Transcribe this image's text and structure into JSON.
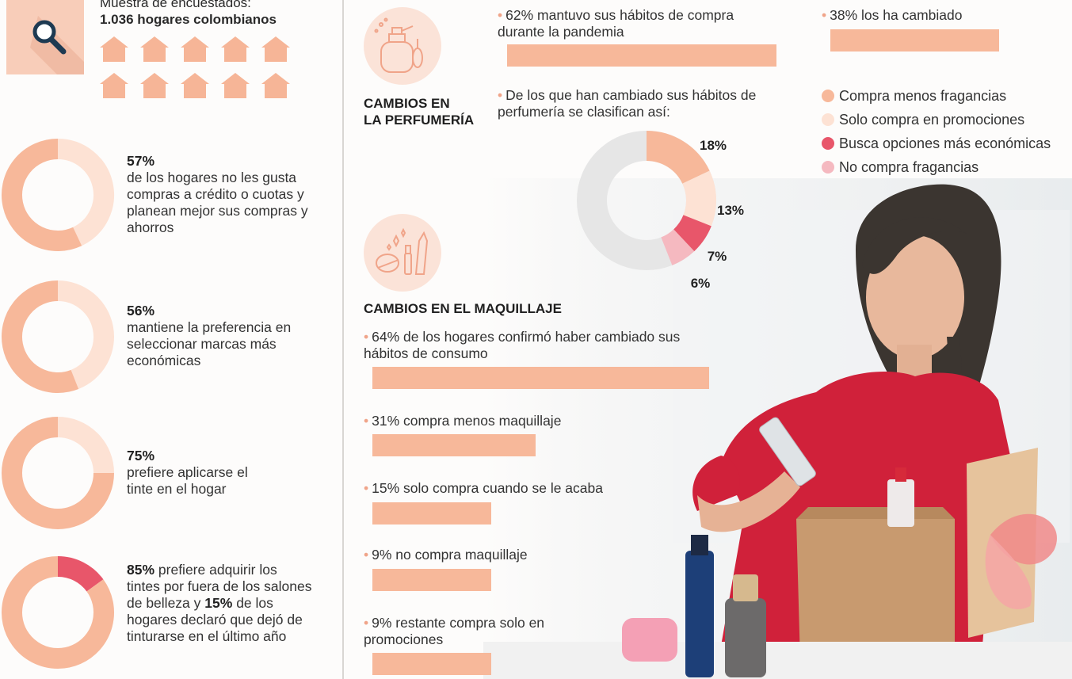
{
  "sample": {
    "line1": "Muestra de encuestados:",
    "line2": "1.036 hogares colombianos"
  },
  "left_stats": [
    {
      "pct": "57%",
      "text": "de los hogares no les gusta compras a crédito o cuotas y planean mejor sus compras y ahorros"
    },
    {
      "pct": "56%",
      "text": "mantiene la preferencia en seleccionar marcas más económicas"
    },
    {
      "pct": "75%",
      "text": "prefiere aplicarse el tinte en el hogar"
    },
    {
      "pct": "85%",
      "text_a": "prefiere adquirir los tintes por fuera de los salones de belleza y",
      "pct2": "15%",
      "text_b": "de los hogares declaró que dejó de tinturarse en el último año"
    }
  ],
  "perfumeria": {
    "title_1": "CAMBIOS EN",
    "title_2": "LA PERFUMERÍA",
    "kept": "62% mantuvo sus hábitos de compra durante la pandemia",
    "changed": "38% los ha cambiado",
    "donut_intro": "De los que han cambiado sus hábitos de perfumería se clasifican así:"
  },
  "maquillaje": {
    "title": "CAMBIOS EN EL MAQUILLAJE",
    "items": [
      {
        "text": "64% de los hogares confirmó haber cambiado sus hábitos de consumo",
        "value": 64
      },
      {
        "text": "31% compra menos maquillaje",
        "value": 31
      },
      {
        "text": "15% solo compra cuando se le acaba",
        "value": 15
      },
      {
        "text": "9% no compra maquillaje",
        "value": 9
      },
      {
        "text": "9% restante compra solo en promociones",
        "value": 9
      }
    ]
  },
  "colors": {
    "peach": "#f7b89a",
    "light_peach": "#fde2d4",
    "red": "#e8566a",
    "pink": "#f5b9c0",
    "grey": "#e6e6e6"
  },
  "chart_data": [
    {
      "type": "pie",
      "title": "",
      "categories": [
        "Compra menos fragancias",
        "Solo compra en promociones",
        "Busca opciones más económicas",
        "No compra fragancias"
      ],
      "values": [
        18,
        13,
        7,
        6
      ],
      "labels": [
        "18%",
        "13%",
        "7%",
        "6%"
      ],
      "colors": [
        "#f7b89a",
        "#fde2d4",
        "#e8566a",
        "#f5b9c0"
      ],
      "legend": "right"
    },
    {
      "type": "pie",
      "values": [
        57,
        43
      ],
      "label": "57%"
    },
    {
      "type": "pie",
      "values": [
        56,
        44
      ],
      "label": "56%"
    },
    {
      "type": "pie",
      "values": [
        75,
        25
      ],
      "label": "75%"
    },
    {
      "type": "pie",
      "values": [
        85,
        15
      ],
      "labels": [
        "85%",
        "15%"
      ]
    },
    {
      "type": "bar",
      "values": [
        62,
        38
      ],
      "labels": [
        "62%",
        "38%"
      ]
    },
    {
      "type": "bar",
      "values": [
        64,
        31,
        15,
        9,
        9
      ]
    }
  ]
}
